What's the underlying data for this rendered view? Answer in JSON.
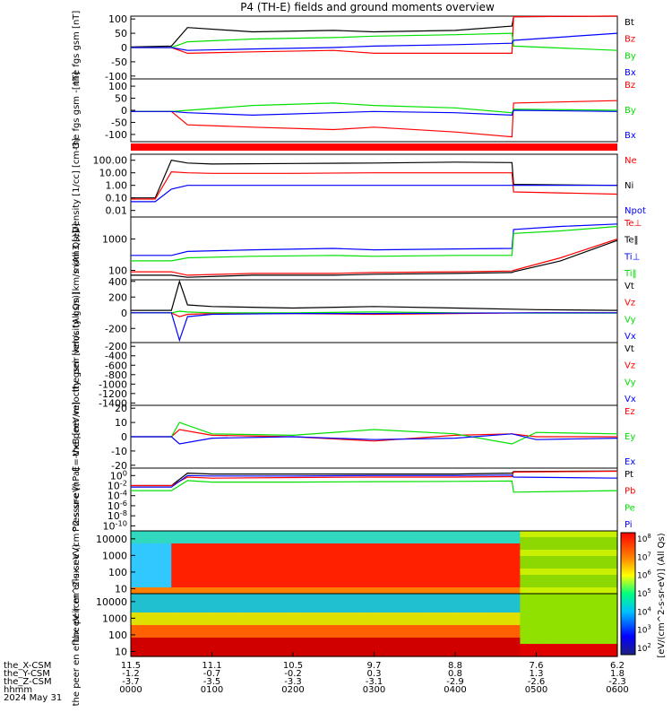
{
  "title": "P4 (TH-E) fields and ground moments overview",
  "date_label": "2024 May 31",
  "ephemeris": {
    "row_labels": [
      "the_X-CSM",
      "the_Y-CSM",
      "the_Z-CSM",
      "hhmm"
    ],
    "columns": [
      {
        "x": "11.5",
        "y": "-1.2",
        "z": "-3.7",
        "hhmm": "0000"
      },
      {
        "x": "11.1",
        "y": "-0.7",
        "z": "-3.5",
        "hhmm": "0100"
      },
      {
        "x": "10.5",
        "y": "-0.2",
        "z": "-3.3",
        "hhmm": "0200"
      },
      {
        "x": "9.7",
        "y": "0.3",
        "z": "-3.1",
        "hhmm": "0300"
      },
      {
        "x": "8.8",
        "y": "0.8",
        "z": "-2.9",
        "hhmm": "0400"
      },
      {
        "x": "7.6",
        "y": "1.3",
        "z": "-2.6",
        "hhmm": "0500"
      },
      {
        "x": "6.2",
        "y": "1.8",
        "z": "-2.3",
        "hhmm": "0600"
      }
    ]
  },
  "colorbar": {
    "label": "[eV/(cm^2-s-sr-eV)] (All Qs)",
    "tick_labels": [
      "10^8",
      "10^7",
      "10^6",
      "10^5",
      "10^4",
      "10^3",
      "10^2"
    ]
  },
  "colors": {
    "black": "#000000",
    "red": "#ff0000",
    "green": "#00e000",
    "blue": "#0000ff"
  },
  "chart_data": [
    {
      "type": "line",
      "ylabel": "the fgs gsm [nT]",
      "yticks": [
        "100",
        "50",
        "0",
        "-50",
        "-100"
      ],
      "ylim": [
        -110,
        110
      ],
      "legend": [
        {
          "name": "Bt",
          "color": "black"
        },
        {
          "name": "Bz",
          "color": "red"
        },
        {
          "name": "By",
          "color": "green"
        },
        {
          "name": "Bx",
          "color": "blue"
        }
      ],
      "x": [
        0,
        0.5,
        0.7,
        1.5,
        2.5,
        3.0,
        4.0,
        4.7,
        4.72,
        6.0
      ],
      "series": [
        {
          "name": "Bt",
          "values": [
            2,
            5,
            70,
            55,
            60,
            55,
            60,
            75,
            108,
            110
          ]
        },
        {
          "name": "Bz",
          "values": [
            0,
            0,
            -20,
            -15,
            -10,
            -20,
            -20,
            -20,
            108,
            110
          ]
        },
        {
          "name": "By",
          "values": [
            0,
            0,
            20,
            30,
            35,
            40,
            45,
            50,
            5,
            -10
          ]
        },
        {
          "name": "Bx",
          "values": [
            0,
            0,
            -10,
            -5,
            0,
            5,
            10,
            15,
            25,
            50
          ]
        }
      ]
    },
    {
      "type": "line",
      "ylabel": "the fgs gsm -[nT]",
      "yticks": [
        "100",
        "50",
        "0",
        "-50",
        "-100"
      ],
      "ylim": [
        -130,
        130
      ],
      "legend": [
        {
          "name": "Bz",
          "color": "red"
        },
        {
          "name": "By",
          "color": "green"
        },
        {
          "name": "Bx",
          "color": "blue"
        }
      ],
      "x": [
        0,
        0.5,
        0.7,
        1.5,
        2.5,
        3.0,
        4.0,
        4.7,
        4.72,
        6.0
      ],
      "series": [
        {
          "name": "Bz",
          "values": [
            -5,
            -5,
            -60,
            -70,
            -80,
            -70,
            -90,
            -110,
            30,
            40
          ]
        },
        {
          "name": "By",
          "values": [
            -5,
            -5,
            0,
            20,
            30,
            20,
            10,
            -10,
            5,
            0
          ]
        },
        {
          "name": "Bx",
          "values": [
            -5,
            -5,
            -10,
            -20,
            -10,
            -5,
            -10,
            -20,
            0,
            -5
          ]
        }
      ]
    },
    {
      "type": "line",
      "ylabel": "Density [1/cc] [cm-3]",
      "yticks": [
        "100.00",
        "10.00",
        "1.00",
        "0.10",
        "0.01"
      ],
      "ylim": [
        0.003,
        300
      ],
      "scale": "log",
      "legend": [
        {
          "name": "Ne",
          "color": "red"
        },
        {
          "name": "Ni",
          "color": "black"
        },
        {
          "name": "Npot",
          "color": "blue"
        }
      ],
      "x": [
        0,
        0.3,
        0.5,
        0.7,
        1.0,
        2.0,
        3.0,
        4.0,
        4.7,
        4.72,
        6.0
      ],
      "series": [
        {
          "name": "Ni",
          "values": [
            0.1,
            0.1,
            100,
            60,
            50,
            55,
            60,
            70,
            65,
            1.2,
            1.0
          ]
        },
        {
          "name": "Ne",
          "values": [
            0.08,
            0.08,
            12,
            10,
            9,
            9,
            10,
            10,
            10,
            0.3,
            0.2
          ]
        },
        {
          "name": "Npot",
          "values": [
            0.05,
            0.05,
            0.5,
            1,
            1,
            1,
            1,
            1,
            1,
            1,
            1
          ]
        }
      ]
    },
    {
      "type": "line",
      "ylabel": "mom3 [eV]",
      "yticks": [
        "1000",
        "100"
      ],
      "ylim": [
        50,
        5000
      ],
      "scale": "log",
      "legend": [
        {
          "name": "Te⊥",
          "color": "red"
        },
        {
          "name": "Te‖",
          "color": "black"
        },
        {
          "name": "Ti⊥",
          "color": "blue"
        },
        {
          "name": "Ti‖",
          "color": "green"
        }
      ],
      "x": [
        0,
        0.5,
        0.7,
        1.5,
        2.5,
        3.0,
        4.0,
        4.7,
        4.72,
        5.3,
        6.0
      ],
      "series": [
        {
          "name": "Te⊥",
          "values": [
            90,
            90,
            70,
            80,
            80,
            85,
            90,
            95,
            100,
            250,
            1000
          ]
        },
        {
          "name": "Te‖",
          "values": [
            70,
            70,
            60,
            70,
            70,
            75,
            80,
            85,
            90,
            200,
            900
          ]
        },
        {
          "name": "Ti⊥",
          "values": [
            300,
            300,
            400,
            450,
            500,
            450,
            480,
            500,
            2000,
            2500,
            3000
          ]
        },
        {
          "name": "Ti‖",
          "values": [
            200,
            200,
            250,
            280,
            300,
            280,
            300,
            300,
            1500,
            1800,
            2500
          ]
        }
      ]
    },
    {
      "type": "line",
      "ylabel": "the peir velocity gsm [km/s (All Qs)]",
      "yticks": [
        "400",
        "200",
        "0",
        "-200"
      ],
      "ylim": [
        -380,
        420
      ],
      "legend": [
        {
          "name": "Vt",
          "color": "black"
        },
        {
          "name": "Vz",
          "color": "red"
        },
        {
          "name": "Vy",
          "color": "green"
        },
        {
          "name": "Vx",
          "color": "blue"
        }
      ],
      "x": [
        0,
        0.5,
        0.6,
        0.7,
        1.0,
        2.0,
        3.0,
        4.0,
        5.0,
        6.0
      ],
      "series": [
        {
          "name": "Vt",
          "values": [
            30,
            30,
            400,
            100,
            80,
            60,
            80,
            60,
            40,
            30
          ]
        },
        {
          "name": "Vz",
          "values": [
            0,
            0,
            -50,
            -20,
            -10,
            -10,
            -20,
            -10,
            0,
            0
          ]
        },
        {
          "name": "Vy",
          "values": [
            0,
            0,
            20,
            10,
            0,
            0,
            10,
            0,
            -5,
            -5
          ]
        },
        {
          "name": "Vx",
          "values": [
            0,
            0,
            -350,
            -50,
            -20,
            -10,
            -10,
            -5,
            0,
            0
          ]
        }
      ]
    },
    {
      "type": "line",
      "ylabel": "the peer velocity gsm [km/s (All Qs)]",
      "yticks": [
        "-200",
        "-400",
        "-600",
        "-800",
        "-1000",
        "-1200",
        "-1400"
      ],
      "ylim": [
        -1450,
        -120
      ],
      "legend": [
        {
          "name": "Vt",
          "color": "black"
        },
        {
          "name": "Vz",
          "color": "red"
        },
        {
          "name": "Vy",
          "color": "green"
        },
        {
          "name": "Vx",
          "color": "blue"
        }
      ],
      "x": [],
      "series": []
    },
    {
      "type": "line",
      "ylabel": "E=-VxB [mV/m]",
      "yticks": [
        "20",
        "10",
        "0",
        "-10",
        "-20"
      ],
      "ylim": [
        -22,
        22
      ],
      "legend": [
        {
          "name": "Ez",
          "color": "red"
        },
        {
          "name": "Ey",
          "color": "green"
        },
        {
          "name": "Ex",
          "color": "blue"
        }
      ],
      "x": [
        0,
        0.5,
        0.6,
        1.0,
        2.0,
        3.0,
        4.0,
        4.7,
        5.0,
        6.0
      ],
      "series": [
        {
          "name": "Ez",
          "values": [
            0,
            0,
            5,
            1,
            0,
            -3,
            1,
            2,
            0,
            0
          ]
        },
        {
          "name": "Ey",
          "values": [
            0,
            0,
            10,
            2,
            1,
            5,
            2,
            -5,
            3,
            2
          ]
        },
        {
          "name": "Ex",
          "values": [
            0,
            0,
            -5,
            -1,
            0,
            -2,
            -1,
            2,
            -2,
            -1
          ]
        }
      ]
    },
    {
      "type": "line",
      "ylabel": "Pressure [nPa]",
      "yticks": [
        "10^0",
        "10^-2",
        "10^-4",
        "10^-6",
        "10^-8",
        "10^-10"
      ],
      "ylim": [
        1e-11,
        30
      ],
      "scale": "log",
      "legend": [
        {
          "name": "Pt",
          "color": "black"
        },
        {
          "name": "Pb",
          "color": "red"
        },
        {
          "name": "Pe",
          "color": "green"
        },
        {
          "name": "Pi",
          "color": "blue"
        }
      ],
      "x": [
        0,
        0.5,
        0.7,
        1.0,
        2.0,
        3.0,
        4.0,
        4.7,
        4.72,
        6.0
      ],
      "series": [
        {
          "name": "Pt",
          "values": [
            0.01,
            0.01,
            3,
            2,
            2,
            2,
            2,
            3,
            6,
            8
          ]
        },
        {
          "name": "Pb",
          "values": [
            0.01,
            0.01,
            0.5,
            0.3,
            0.4,
            0.5,
            0.5,
            0.6,
            5,
            7
          ]
        },
        {
          "name": "Pe",
          "values": [
            0.001,
            0.001,
            0.1,
            0.05,
            0.05,
            0.06,
            0.07,
            0.08,
            0.0005,
            0.001
          ]
        },
        {
          "name": "Pi",
          "values": [
            0.005,
            0.005,
            1,
            0.8,
            0.8,
            1,
            1,
            1.2,
            0.5,
            0.3
          ]
        }
      ]
    },
    {
      "type": "heatmap",
      "ylabel": "the peir en eflux eV (cm^2-s-sr-eV)",
      "yticks": [
        "10000",
        "1000",
        "100",
        "10"
      ],
      "ylim": [
        5,
        30000
      ],
      "scale": "log"
    },
    {
      "type": "heatmap",
      "ylabel": "the peer en eflux eV (cm^2-s-sr-eV)",
      "yticks": [
        "10000",
        "1000",
        "100",
        "10"
      ],
      "ylim": [
        5,
        30000
      ],
      "scale": "log"
    }
  ]
}
